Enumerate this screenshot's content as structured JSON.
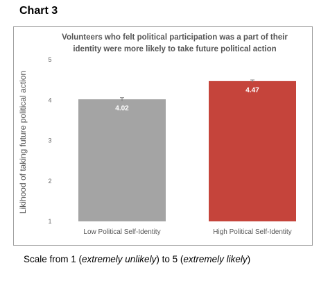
{
  "chart_label": "Chart 3",
  "chart_data": {
    "type": "bar",
    "title": "Volunteers who felt political participation was a part of their identity were more likely to take future political action",
    "title_lines": [
      "Volunteers who felt political participation was a part of their",
      "identity were more likely to take future political action"
    ],
    "categories": [
      "Low Political Self-Identity",
      "High Political Self-Identity"
    ],
    "values": [
      4.02,
      4.47
    ],
    "value_labels": [
      "4.02",
      "4.47"
    ],
    "error": [
      0.04,
      0.03
    ],
    "colors": [
      "#a4a4a4",
      "#c5443b"
    ],
    "ylabel": "Likihood of taking future political action",
    "xlabel": "",
    "ylim": [
      1,
      5
    ],
    "yticks": [
      "1",
      "2",
      "3",
      "4",
      "5"
    ],
    "grid": false,
    "legend": "none"
  },
  "scale_note": {
    "prefix": "Scale from 1 (",
    "low_anchor": "extremely unlikely",
    "middle": ") to 5 (",
    "high_anchor": "extremely likely",
    "suffix": ")"
  }
}
